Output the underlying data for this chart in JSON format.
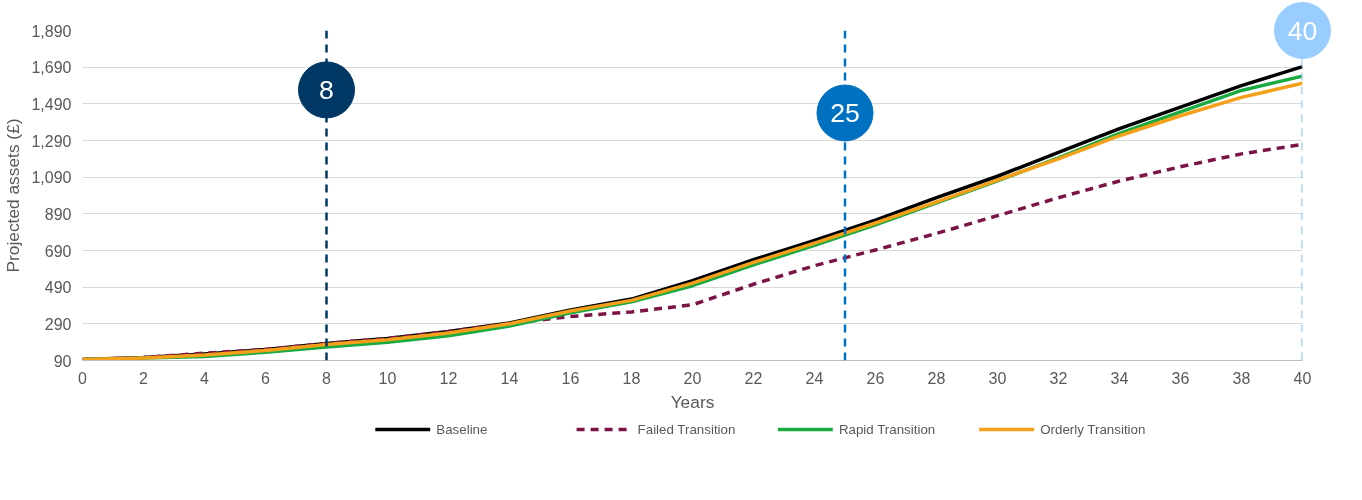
{
  "chart_data": {
    "type": "line",
    "xlabel": "Years",
    "ylabel": "Projected assets (£)",
    "x": [
      0,
      2,
      4,
      6,
      8,
      10,
      12,
      14,
      16,
      18,
      20,
      22,
      24,
      26,
      28,
      30,
      32,
      34,
      36,
      38,
      40
    ],
    "xlim": [
      0,
      40
    ],
    "xticks": [
      0,
      2,
      4,
      6,
      8,
      10,
      12,
      14,
      16,
      18,
      20,
      22,
      24,
      26,
      28,
      30,
      32,
      34,
      36,
      38,
      40
    ],
    "ylim": [
      90,
      1890
    ],
    "yticks": [
      90,
      290,
      490,
      690,
      890,
      {
        "value": 1090,
        "label": "1,090"
      },
      {
        "value": 1290,
        "label": "1,290"
      },
      {
        "value": 1490,
        "label": "1,490"
      },
      {
        "value": 1690,
        "label": "1,690"
      },
      {
        "value": 1890,
        "label": "1,890"
      }
    ],
    "grid": "y",
    "legend": "bottom",
    "marker": "none",
    "line_style": "solid",
    "series": [
      {
        "name": "Baseline",
        "color": "#000000",
        "values": [
          95,
          106,
          125,
          150,
          183,
          210,
          248,
          295,
          365,
          425,
          525,
          640,
          745,
          856,
          978,
          1095,
          1225,
          1355,
          1472,
          1589,
          1693
        ]
      },
      {
        "name": "Failed Transition",
        "color": "#7b1346",
        "line_style": "dashed",
        "values": [
          95,
          106,
          130,
          150,
          183,
          210,
          248,
          292,
          330,
          355,
          394,
          506,
          607,
          693,
          783,
          880,
          978,
          1069,
          1147,
          1217,
          1269
        ]
      },
      {
        "name": "Rapid Transition",
        "color": "#1aab40",
        "values": [
          95,
          103,
          112,
          135,
          163,
          190,
          225,
          278,
          350,
          410,
          498,
          612,
          718,
          830,
          950,
          1070,
          1195,
          1329,
          1446,
          1563,
          1641
        ]
      },
      {
        "name": "Orderly Transition",
        "color": "#f5a01a",
        "values": [
          95,
          104,
          120,
          145,
          177,
          203,
          240,
          290,
          360,
          418,
          512,
          625,
          730,
          840,
          955,
          1074,
          1190,
          1316,
          1425,
          1525,
          1602
        ]
      }
    ],
    "ref_lines": [
      {
        "axis": "x",
        "value": 8,
        "label": "8",
        "color": "#003865",
        "line_style": "dashed"
      },
      {
        "axis": "x",
        "value": 25,
        "label": "25",
        "color": "#0070c0",
        "line_style": "dashed"
      },
      {
        "axis": "x",
        "value": 40,
        "label": "40",
        "color": "#99ccff",
        "line_style": "dashed"
      }
    ]
  }
}
